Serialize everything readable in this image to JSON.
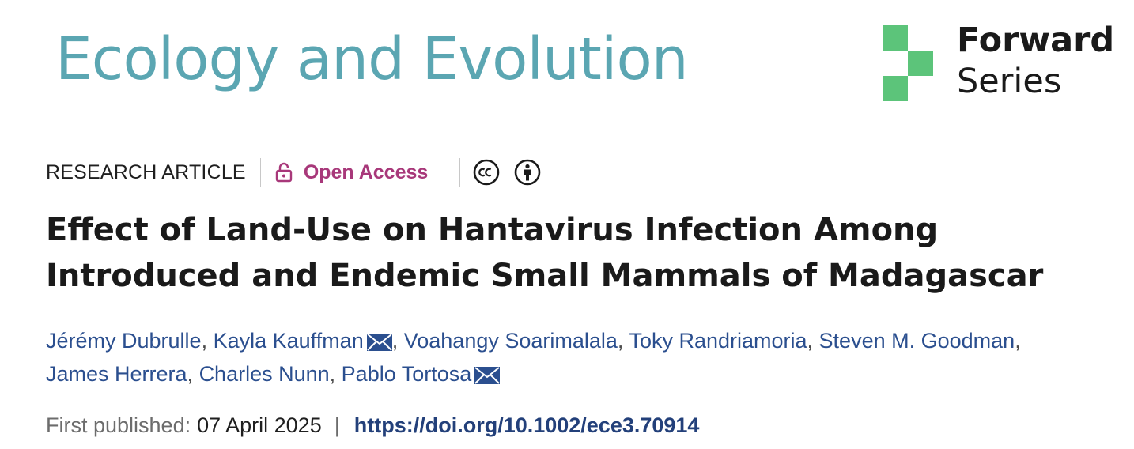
{
  "journal": {
    "name": "Ecology and Evolution",
    "series_line1": "Forward",
    "series_line2": "Series",
    "logo_color": "#5cc47a",
    "name_color": "#5ba6b2"
  },
  "meta": {
    "article_type": "RESEARCH ARTICLE",
    "access_label": "Open Access",
    "access_color": "#a8387a",
    "icons": [
      "lock-icon",
      "cc-icon",
      "attribution-icon"
    ]
  },
  "article": {
    "title": "Effect of Land-Use on Hantavirus Infection Among Introduced and Endemic Small Mammals of Madagascar"
  },
  "authors": [
    {
      "name": "Jérémy Dubrulle",
      "has_email": false
    },
    {
      "name": "Kayla Kauffman",
      "has_email": true
    },
    {
      "name": "Voahangy Soarimalala",
      "has_email": false
    },
    {
      "name": "Toky Randriamoria",
      "has_email": false
    },
    {
      "name": "Steven M. Goodman",
      "has_email": false
    },
    {
      "name": "James Herrera",
      "has_email": false
    },
    {
      "name": "Charles Nunn",
      "has_email": false
    },
    {
      "name": "Pablo Tortosa",
      "has_email": true
    }
  ],
  "publication": {
    "first_published_label": "First published:",
    "date": "07 April 2025",
    "separator": "|",
    "doi": "https://doi.org/10.1002/ece3.70914"
  },
  "colors": {
    "author_link": "#2b4f8f",
    "doi_link": "#23407a"
  }
}
